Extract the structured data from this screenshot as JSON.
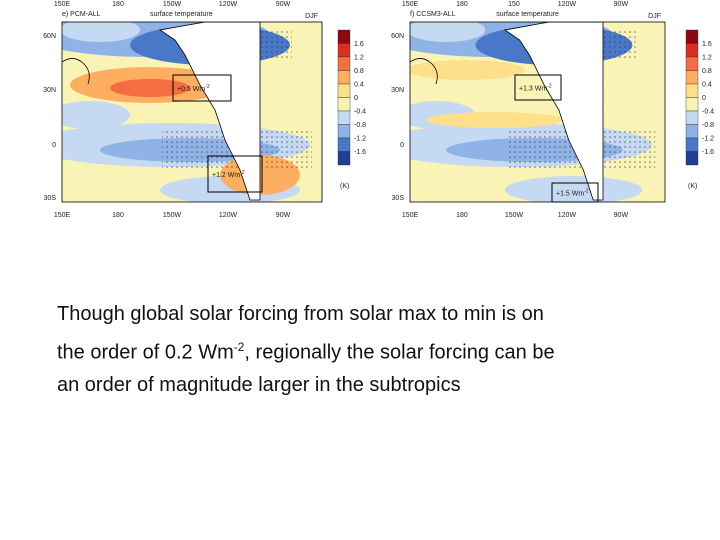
{
  "panels": [
    {
      "title": "e) PCM-ALL",
      "variable": "surface temperature",
      "season": "DJF",
      "lon_top": [
        "150E",
        "180",
        "150W",
        "120W",
        "90W"
      ],
      "lon_bottom": [
        "150E",
        "180",
        "150W",
        "120W",
        "90W"
      ],
      "lat": [
        "60N",
        "30N",
        "0",
        "30S"
      ],
      "boxes": [
        {
          "label": "+0.5 Wm",
          "sup": "-2"
        },
        {
          "label": "+1.2 Wm",
          "sup": "-2"
        }
      ],
      "colorbar": {
        "ticks": [
          1.6,
          1.2,
          0.8,
          0.4,
          0,
          -0.4,
          -0.8,
          -1.2,
          -1.6
        ],
        "unit": "(K)"
      }
    },
    {
      "title": "f) CCSM3-ALL",
      "variable": "surface temperature",
      "season": "DJF",
      "lon_top": [
        "150E",
        "180",
        "150",
        "120W",
        "90W"
      ],
      "lon_bottom": [
        "150E",
        "180",
        "150W",
        "120W",
        "90W"
      ],
      "lat": [
        "60N",
        "30N",
        "0",
        "30S"
      ],
      "boxes": [
        {
          "label": "+1.3 Wm",
          "sup": "-2"
        },
        {
          "label": "+1.5 Wm",
          "sup": "-2"
        }
      ],
      "colorbar": {
        "ticks": [
          1.6,
          1.2,
          0.8,
          0.4,
          0,
          -0.4,
          -0.8,
          -1.2,
          -1.6
        ],
        "unit": "(K)"
      }
    }
  ],
  "paragraph": {
    "line1": "Though global solar forcing from solar max to min is on",
    "line2": "the order of 0.2 Wm",
    "sup": "-2",
    "line2_end": ", regionally the solar forcing can be",
    "line3": "an order of magnitude larger in the subtropics"
  }
}
